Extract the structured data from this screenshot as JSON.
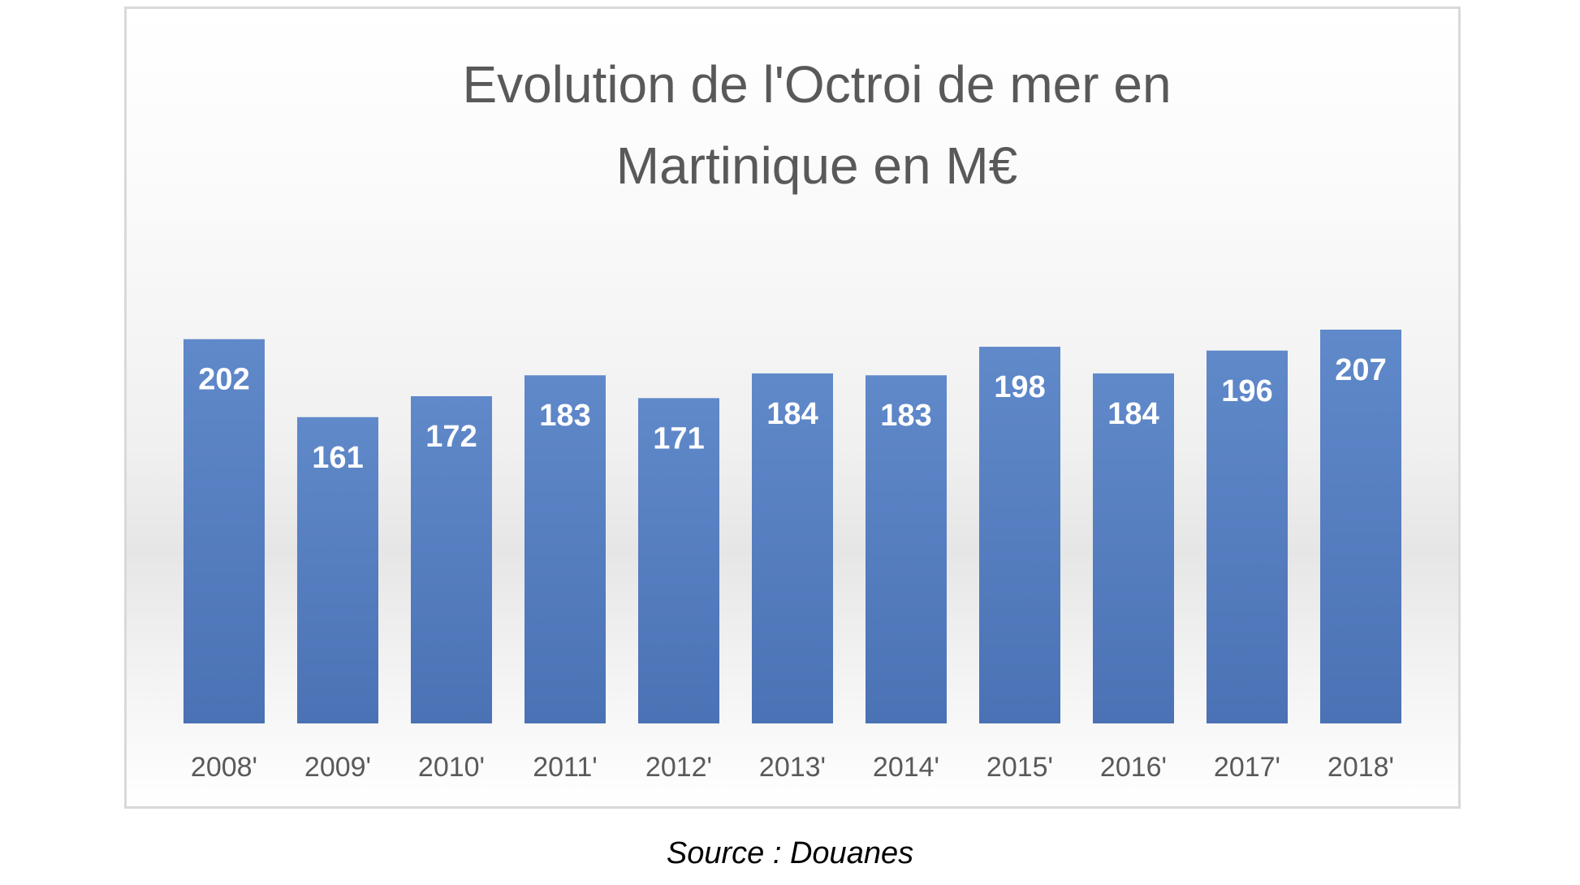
{
  "colors": {
    "bar": "#5a82c4",
    "bar_dark": "#4a72b4",
    "text": "#595959",
    "label": "#ffffff"
  },
  "chart_data": {
    "type": "bar",
    "title_lines": [
      "Evolution de l'Octroi de mer en",
      "Martinique en M€"
    ],
    "categories": [
      "2008'",
      "2009'",
      "2010'",
      "2011'",
      "2012'",
      "2013'",
      "2014'",
      "2015'",
      "2016'",
      "2017'",
      "2018'"
    ],
    "values": [
      202,
      161,
      172,
      183,
      171,
      184,
      183,
      198,
      184,
      196,
      207
    ],
    "ylim": [
      0,
      207
    ],
    "grid": false,
    "legend": "none",
    "data_labels": true
  },
  "source": "Source : Douanes"
}
